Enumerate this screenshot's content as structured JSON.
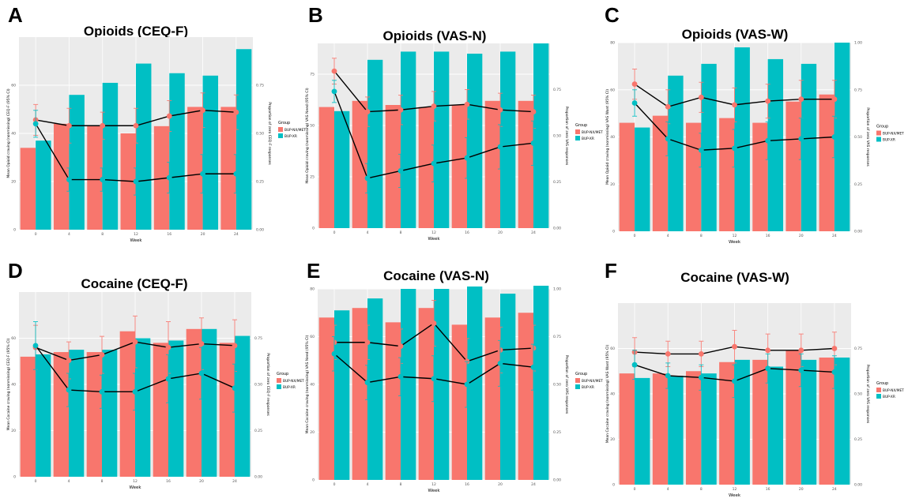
{
  "colors": {
    "bupnx": "#f8766d",
    "bupxr": "#00bfc4",
    "panel_bg": "#ebebeb",
    "grid": "#ffffff",
    "line": "#000000"
  },
  "legend": {
    "title": "Group",
    "items": [
      "BUP-NX/MET",
      "BUP-XR"
    ]
  },
  "chart_data": [
    {
      "id": "A",
      "type": "bar",
      "title": "Opioids (CEQ-F)",
      "xlabel": "Week",
      "ylabel": "Mean Opioid craving (nonmissing) CEQ-F (95% CI)",
      "y2label": "Proportion of zero CEQ-F responses",
      "categories": [
        "0",
        "4",
        "8",
        "12",
        "16",
        "20",
        "24"
      ],
      "ylim": [
        0,
        80
      ],
      "yticks": [
        0,
        20,
        40,
        60
      ],
      "y2lim": [
        0,
        1
      ],
      "y2ticks": [
        0,
        0.25,
        0.5,
        0.75
      ],
      "series": [
        {
          "name": "BUP-NX/MET",
          "values": [
            34,
            44,
            43,
            40,
            43,
            51,
            51
          ]
        },
        {
          "name": "BUP-XR",
          "values": [
            37,
            56,
            61,
            69,
            65,
            64,
            75
          ]
        }
      ],
      "lines": [
        {
          "name": "BUP-NX/MET",
          "values": [
            0.57,
            0.54,
            0.54,
            0.54,
            0.59,
            0.62,
            0.61
          ],
          "err": [
            0.08,
            0.09,
            0.07,
            0.09,
            0.08,
            0.09,
            0.09
          ]
        },
        {
          "name": "BUP-XR",
          "values": [
            0.55,
            0.26,
            0.26,
            0.25,
            0.27,
            0.29,
            0.29
          ],
          "err": [
            0.07,
            0.06,
            0.06,
            0.07,
            0.08,
            0.1,
            0.1
          ]
        }
      ]
    },
    {
      "id": "B",
      "type": "bar",
      "title": "Opioids (VAS-N)",
      "xlabel": "Week",
      "ylabel": "Mean Opioid craving (nonmissing) VAS Need (95% CI)",
      "y2label": "Proportion of zero VAS responses",
      "categories": [
        "0",
        "4",
        "8",
        "12",
        "16",
        "20",
        "24"
      ],
      "ylim": [
        0,
        90
      ],
      "yticks": [
        0,
        25,
        50,
        75
      ],
      "y2lim": [
        0,
        1
      ],
      "y2ticks": [
        0,
        0.25,
        0.5,
        0.75
      ],
      "series": [
        {
          "name": "BUP-NX/MET",
          "values": [
            59,
            62,
            60,
            59,
            60,
            62,
            62
          ]
        },
        {
          "name": "BUP-XR",
          "values": [
            57,
            82,
            86,
            86,
            85,
            86,
            90
          ]
        }
      ],
      "lines": [
        {
          "name": "BUP-NX/MET",
          "values": [
            0.85,
            0.63,
            0.64,
            0.66,
            0.67,
            0.64,
            0.63
          ],
          "err": [
            0.07,
            0.08,
            0.08,
            0.08,
            0.08,
            0.09,
            0.09
          ]
        },
        {
          "name": "BUP-XR",
          "values": [
            0.74,
            0.27,
            0.31,
            0.35,
            0.38,
            0.44,
            0.46
          ],
          "err": [
            0.06,
            0.08,
            0.09,
            0.1,
            0.11,
            0.12,
            0.12
          ]
        }
      ]
    },
    {
      "id": "C",
      "type": "bar",
      "title": "Opioids (VAS-W)",
      "xlabel": "Week",
      "ylabel": "Mean Opioid craving (nonmissing) VAS Want (95% CI)",
      "y2label": "Proportion of zero VAS responses",
      "categories": [
        "0",
        "4",
        "8",
        "12",
        "16",
        "20",
        "24"
      ],
      "ylim": [
        0,
        80
      ],
      "yticks": [
        0,
        20,
        40,
        60,
        80
      ],
      "y2lim": [
        0,
        1
      ],
      "y2ticks": [
        0,
        0.25,
        0.5,
        0.75,
        1.0
      ],
      "series": [
        {
          "name": "BUP-NX/MET",
          "values": [
            46,
            49,
            46,
            48,
            46,
            55,
            58
          ]
        },
        {
          "name": "BUP-XR",
          "values": [
            44,
            66,
            71,
            78,
            73,
            71,
            80
          ]
        }
      ],
      "lines": [
        {
          "name": "BUP-NX/MET",
          "values": [
            0.78,
            0.66,
            0.71,
            0.67,
            0.69,
            0.7,
            0.7
          ],
          "err": [
            0.08,
            0.09,
            0.08,
            0.09,
            0.09,
            0.1,
            0.1
          ]
        },
        {
          "name": "BUP-XR",
          "values": [
            0.68,
            0.49,
            0.43,
            0.44,
            0.48,
            0.49,
            0.5
          ],
          "err": [
            0.07,
            0.09,
            0.09,
            0.1,
            0.1,
            0.11,
            0.11
          ]
        }
      ]
    },
    {
      "id": "D",
      "type": "bar",
      "title": "Cocaine (CEQ-F)",
      "xlabel": "Week",
      "ylabel": "Mean Cocaine craving (nonmissing) CEQ-F (95% CI)",
      "y2label": "Proportion of zero CEQ-F responses",
      "categories": [
        "0",
        "4",
        "8",
        "12",
        "16",
        "20",
        "24"
      ],
      "ylim": [
        0,
        80
      ],
      "yticks": [
        0,
        20,
        40,
        60
      ],
      "y2lim": [
        0,
        1
      ],
      "y2ticks": [
        0,
        0.25,
        0.5,
        0.75
      ],
      "series": [
        {
          "name": "BUP-NX/MET",
          "values": [
            52,
            54,
            54,
            63,
            58,
            64,
            58
          ]
        },
        {
          "name": "BUP-XR",
          "values": [
            53,
            55,
            55,
            60,
            59,
            64,
            61
          ]
        }
      ],
      "lines": [
        {
          "name": "BUP-NX/MET",
          "values": [
            0.7,
            0.63,
            0.66,
            0.73,
            0.7,
            0.72,
            0.71
          ],
          "err": [
            0.12,
            0.1,
            0.1,
            0.14,
            0.14,
            0.14,
            0.14
          ]
        },
        {
          "name": "BUP-XR",
          "values": [
            0.71,
            0.47,
            0.46,
            0.46,
            0.53,
            0.56,
            0.48
          ],
          "err": [
            0.13,
            0.09,
            0.09,
            0.1,
            0.13,
            0.14,
            0.13
          ]
        }
      ]
    },
    {
      "id": "E",
      "type": "bar",
      "title": "Cocaine (VAS-N)",
      "xlabel": "Week",
      "ylabel": "Mean Cocaine craving (nonmissing) VAS Need (95% CI)",
      "y2label": "Proportion of zero VAS responses",
      "categories": [
        "0",
        "4",
        "8",
        "12",
        "16",
        "20",
        "24"
      ],
      "ylim": [
        0,
        80
      ],
      "yticks": [
        0,
        20,
        40,
        60,
        80
      ],
      "y2lim": [
        0,
        1
      ],
      "y2ticks": [
        0,
        0.25,
        0.5,
        0.75,
        1.0
      ],
      "series": [
        {
          "name": "BUP-NX/MET",
          "values": [
            68,
            72,
            66,
            72,
            65,
            68,
            70
          ]
        },
        {
          "name": "BUP-XR",
          "values": [
            71,
            76,
            80,
            80,
            81,
            78,
            82
          ]
        }
      ],
      "lines": [
        {
          "name": "BUP-NX/MET",
          "values": [
            0.72,
            0.72,
            0.7,
            0.82,
            0.62,
            0.68,
            0.69
          ],
          "err": [
            0.09,
            0.09,
            0.09,
            0.12,
            0.12,
            0.12,
            0.12
          ]
        },
        {
          "name": "BUP-XR",
          "values": [
            0.66,
            0.51,
            0.54,
            0.53,
            0.5,
            0.61,
            0.59
          ],
          "err": [
            0.09,
            0.09,
            0.1,
            0.12,
            0.12,
            0.12,
            0.12
          ]
        }
      ]
    },
    {
      "id": "F",
      "type": "bar",
      "title": "Cocaine (VAS-W)",
      "xlabel": "Week",
      "ylabel": "Mean Cocaine craving (nonmissing) VAS Want (95% CI)",
      "y2label": "Proportion of zero VAS responses",
      "categories": [
        "0",
        "4",
        "8",
        "12",
        "16",
        "20",
        "24"
      ],
      "ylim": [
        0,
        80
      ],
      "yticks": [
        0,
        20,
        40,
        60
      ],
      "y2lim": [
        0,
        1
      ],
      "y2ticks": [
        0,
        0.25,
        0.5,
        0.75
      ],
      "series": [
        {
          "name": "BUP-NX/MET",
          "values": [
            49,
            49,
            50,
            54,
            55,
            59,
            56
          ]
        },
        {
          "name": "BUP-XR",
          "values": [
            47,
            48,
            49,
            55,
            52,
            55,
            56
          ]
        }
      ],
      "lines": [
        {
          "name": "BUP-NX/MET",
          "values": [
            0.73,
            0.72,
            0.72,
            0.76,
            0.74,
            0.74,
            0.75
          ],
          "err": [
            0.08,
            0.07,
            0.07,
            0.09,
            0.09,
            0.09,
            0.09
          ]
        },
        {
          "name": "BUP-XR",
          "values": [
            0.66,
            0.6,
            0.59,
            0.57,
            0.64,
            0.63,
            0.62
          ],
          "err": [
            0.08,
            0.07,
            0.07,
            0.09,
            0.08,
            0.09,
            0.09
          ]
        }
      ]
    }
  ]
}
